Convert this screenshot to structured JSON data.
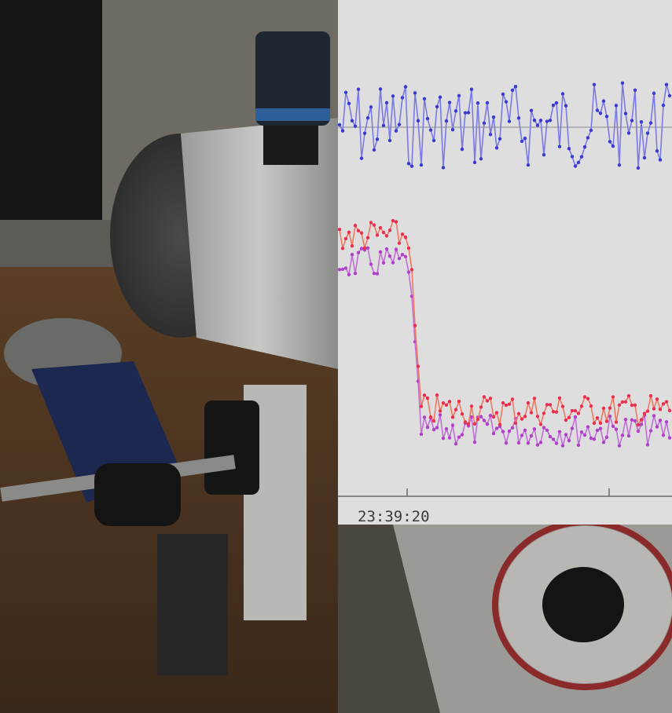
{
  "overlay": {
    "time_label": "23:39:20"
  }
}
